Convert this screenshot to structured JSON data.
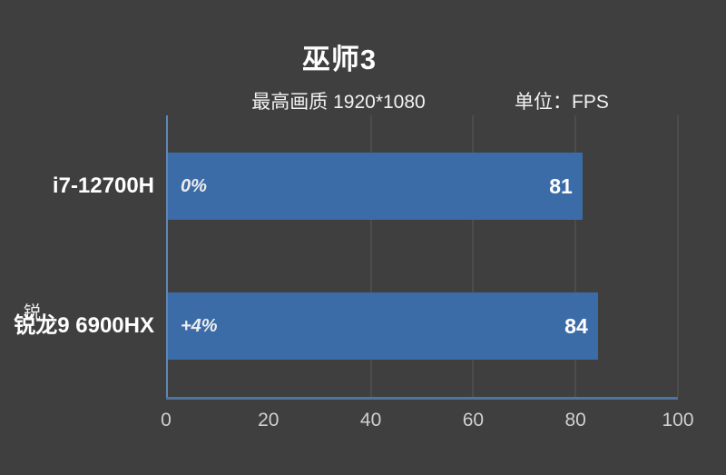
{
  "header": {
    "title": "巫师3",
    "subtitle": "最高画质 1920*1080",
    "unit_label": "单位：FPS"
  },
  "watermark": "锐",
  "colors": {
    "background": "#3F3F3F",
    "bar": "#3B6CA8",
    "axis": "#50749E",
    "y_axis": "#5F87B8",
    "gridline": "#585858",
    "tick_label": "#CFCFCF",
    "text": "#FFFFFF"
  },
  "chart_data": {
    "type": "bar",
    "orientation": "horizontal",
    "title": "巫师3",
    "subtitle": "最高画质 1920*1080",
    "unit": "FPS",
    "categories": [
      "i7-12700H",
      "锐龙9 6900HX"
    ],
    "values": [
      81,
      84
    ],
    "delta_labels": [
      "0%",
      "+4%"
    ],
    "series": [
      {
        "name": "FPS",
        "values": [
          81,
          84
        ]
      }
    ],
    "xlim": [
      0,
      100
    ],
    "x_ticks": [
      0,
      20,
      40,
      60,
      80,
      100
    ],
    "gridlines_at": [
      40,
      60,
      80,
      100
    ],
    "legend_position": "none",
    "value_label_position": "inside-end",
    "grid": "vertical-only"
  }
}
